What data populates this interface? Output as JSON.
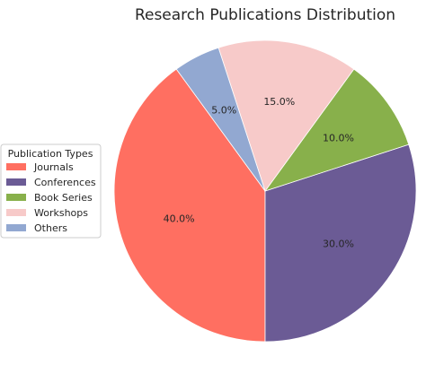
{
  "chart_data": {
    "type": "pie",
    "title": "Research Publications Distribution",
    "categories": [
      "Journals",
      "Conferences",
      "Book Series",
      "Workshops",
      "Others"
    ],
    "values": [
      40.0,
      30.0,
      10.0,
      15.0,
      5.0
    ],
    "value_labels": [
      "40.0%",
      "30.0%",
      "10.0%",
      "15.0%",
      "5.0%"
    ],
    "colors": [
      "#ff6f61",
      "#6b5b95",
      "#88b04b",
      "#f7cac9",
      "#92a8d1"
    ],
    "start_angle_deg": 126,
    "direction": "counterclockwise",
    "legend": {
      "title": "Publication Types",
      "placement": "center-left"
    }
  }
}
